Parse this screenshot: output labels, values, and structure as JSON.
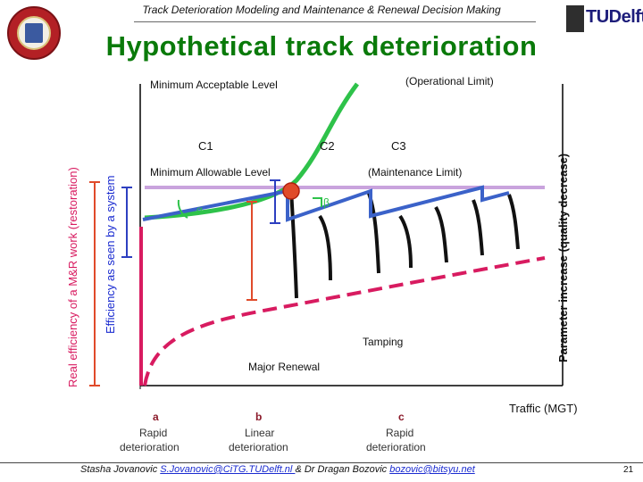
{
  "header": {
    "title": "Track Deterioration Modeling and Maintenance & Renewal Decision Making",
    "slide_title": "Hypothetical track deterioration",
    "logo_right": {
      "tu": "TU",
      "delft": "Delft"
    }
  },
  "diagram": {
    "label_left_outer": "Real efficiency of a M&R work (restoration)",
    "label_left_inner": "Efficiency as seen by a system",
    "label_right": "Parameter increase (quality decrease)",
    "min_acceptable": "Minimum Acceptable Level",
    "operational_limit": "(Operational Limit)",
    "min_allowable": "Minimum Allowable Level",
    "maintenance_limit": "(Maintenance Limit)",
    "c1": "C1",
    "c2": "C2",
    "c3": "C3",
    "alpha": "α",
    "beta": "β",
    "tamping": "Tamping",
    "major_renewal": "Major Renewal",
    "traffic": "Traffic (MGT)",
    "phase_a": {
      "letter": "a",
      "line1": "Rapid",
      "line2": "deterioration"
    },
    "phase_b": {
      "letter": "b",
      "line1": "Linear",
      "line2": "deterioration"
    },
    "phase_c": {
      "letter": "c",
      "line1": "Rapid",
      "line2": "deterioration"
    }
  },
  "footer": {
    "authors_prefix": "Stasha Jovanovic ",
    "email1": "S.Jovanovic@CiTG.TUDelft.nl ",
    "authors_mid": "& Dr Dragan Bozovic ",
    "email2": "bozovic@bitsyu.net",
    "page": "21"
  },
  "colors": {
    "title_green": "#0a7a0a",
    "curve_green": "#2ec24a",
    "curve_blue": "#3b62c9",
    "curve_magenta": "#d81b60",
    "limit_purple": "#c9a3dd",
    "marker_red": "#e04a2a"
  }
}
